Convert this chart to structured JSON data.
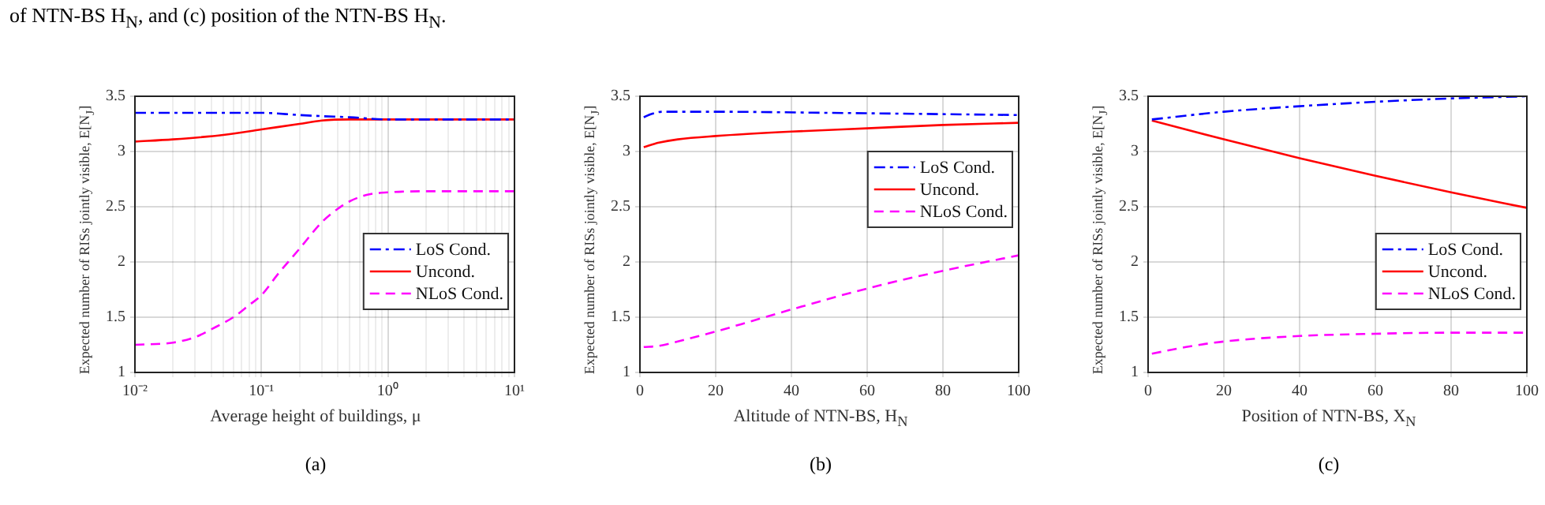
{
  "chart_data": [
    {
      "type": "line",
      "xlabel": "Average height of buildings, μ",
      "ylabel": "Expected number of RISs jointly visible, E[N$_{J}$]",
      "annotations": [
        "of NTN-BS H$_{N}$, and (c) position of the NTN-BS H$_{N}$.",
        "(a)"
      ],
      "log": "x",
      "xlim": [
        0.01,
        10
      ],
      "xticks": [
        {
          "value": 0.01,
          "label": "10⁻²"
        },
        {
          "value": 0.02,
          "label": null
        },
        {
          "value": 0.03,
          "label": null
        },
        {
          "value": 0.04,
          "label": null
        },
        {
          "value": 0.05,
          "label": null
        },
        {
          "value": 0.06,
          "label": null
        },
        {
          "value": 0.07,
          "label": null
        },
        {
          "value": 0.08,
          "label": null
        },
        {
          "value": 0.09,
          "label": null
        },
        {
          "value": 0.1,
          "label": "10⁻¹"
        },
        {
          "value": 0.2,
          "label": null
        },
        {
          "value": 0.3,
          "label": null
        },
        {
          "value": 0.4,
          "label": null
        },
        {
          "value": 0.5,
          "label": null
        },
        {
          "value": 0.6,
          "label": null
        },
        {
          "value": 0.7,
          "label": null
        },
        {
          "value": 0.8,
          "label": null
        },
        {
          "value": 0.9,
          "label": null
        },
        {
          "value": 1,
          "label": "10⁰"
        },
        {
          "value": 2,
          "label": null
        },
        {
          "value": 3,
          "label": null
        },
        {
          "value": 4,
          "label": null
        },
        {
          "value": 5,
          "label": null
        },
        {
          "value": 6,
          "label": null
        },
        {
          "value": 7,
          "label": null
        },
        {
          "value": 8,
          "label": null
        },
        {
          "value": 9,
          "label": null
        },
        {
          "value": 10,
          "label": "10¹"
        }
      ],
      "ylim": [
        1,
        3.5
      ],
      "yticks": [
        1,
        1.5,
        2,
        2.5,
        3,
        3.5
      ],
      "grid": true,
      "legend": "bottom right",
      "series": [
        {
          "name": "LoS Cond.",
          "color": "#0000ff",
          "line_style": "dashdot",
          "x": [
            0.01,
            0.03,
            0.1,
            0.2,
            0.3,
            0.5,
            1,
            2,
            10
          ],
          "values": [
            3.35,
            3.35,
            3.35,
            3.33,
            3.32,
            3.31,
            3.29,
            3.29,
            3.29
          ]
        },
        {
          "name": "Uncond.",
          "color": "#ff0000",
          "line_style": "solid",
          "x": [
            0.01,
            0.02,
            0.05,
            0.1,
            0.2,
            0.3,
            0.5,
            1,
            10
          ],
          "values": [
            3.09,
            3.11,
            3.15,
            3.2,
            3.25,
            3.28,
            3.29,
            3.29,
            3.29
          ]
        },
        {
          "name": "NLoS Cond.",
          "color": "#ff00ff",
          "line_style": "dashed",
          "x": [
            0.01,
            0.02,
            0.03,
            0.04,
            0.06,
            0.08,
            0.1,
            0.135,
            0.2,
            0.3,
            0.4,
            0.5,
            0.7,
            1,
            2,
            10
          ],
          "values": [
            1.25,
            1.27,
            1.32,
            1.39,
            1.5,
            1.61,
            1.7,
            1.89,
            2.12,
            2.36,
            2.48,
            2.55,
            2.61,
            2.63,
            2.64,
            2.64
          ]
        }
      ]
    },
    {
      "type": "line",
      "xlabel": "Altitude of NTN-BS, H$_{N}$",
      "ylabel": "Expected number of RISs jointly visible, E[N$_{J}$]",
      "annotations": [
        "(b)"
      ],
      "xlim": [
        0,
        100
      ],
      "xticks": [
        0,
        20,
        40,
        60,
        80,
        100
      ],
      "ylim": [
        1,
        3.5
      ],
      "yticks": [
        1,
        1.5,
        2,
        2.5,
        3,
        3.5
      ],
      "grid": true,
      "legend": "right",
      "series": [
        {
          "name": "LoS Cond.",
          "color": "#0000ff",
          "line_style": "dashdot",
          "x": [
            1,
            3,
            6,
            20,
            50,
            100
          ],
          "values": [
            3.31,
            3.34,
            3.36,
            3.36,
            3.35,
            3.33
          ]
        },
        {
          "name": "Uncond.",
          "color": "#ff0000",
          "line_style": "solid",
          "x": [
            1,
            5,
            10,
            20,
            40,
            60,
            80,
            100
          ],
          "values": [
            3.04,
            3.08,
            3.11,
            3.14,
            3.18,
            3.21,
            3.24,
            3.26
          ]
        },
        {
          "name": "NLoS Cond.",
          "color": "#ff00ff",
          "line_style": "dashed",
          "x": [
            1,
            5,
            10,
            20,
            30,
            40,
            60,
            80,
            100
          ],
          "values": [
            1.23,
            1.24,
            1.28,
            1.37,
            1.47,
            1.57,
            1.76,
            1.92,
            2.06
          ]
        }
      ]
    },
    {
      "type": "line",
      "xlabel": "Position of NTN-BS, X$_{N}$",
      "ylabel": "Expected number of RISs jointly visible, E[N$_{J}$]",
      "annotations": [
        "(c)"
      ],
      "xlim": [
        0,
        100
      ],
      "xticks": [
        0,
        20,
        40,
        60,
        80,
        100
      ],
      "ylim": [
        1,
        3.5
      ],
      "yticks": [
        1,
        1.5,
        2,
        2.5,
        3,
        3.5
      ],
      "grid": true,
      "legend": "bottom right",
      "series": [
        {
          "name": "LoS Cond.",
          "color": "#0000ff",
          "line_style": "dashdot",
          "x": [
            1,
            20,
            40,
            60,
            80,
            100
          ],
          "values": [
            3.29,
            3.36,
            3.41,
            3.45,
            3.48,
            3.5
          ]
        },
        {
          "name": "Uncond.",
          "color": "#ff0000",
          "line_style": "solid",
          "x": [
            1,
            20,
            40,
            60,
            80,
            100
          ],
          "values": [
            3.28,
            3.11,
            2.94,
            2.78,
            2.63,
            2.49
          ]
        },
        {
          "name": "NLoS Cond.",
          "color": "#ff00ff",
          "line_style": "dashed",
          "x": [
            1,
            10,
            20,
            40,
            60,
            80,
            100
          ],
          "values": [
            1.17,
            1.23,
            1.28,
            1.33,
            1.35,
            1.36,
            1.36
          ]
        }
      ]
    }
  ]
}
